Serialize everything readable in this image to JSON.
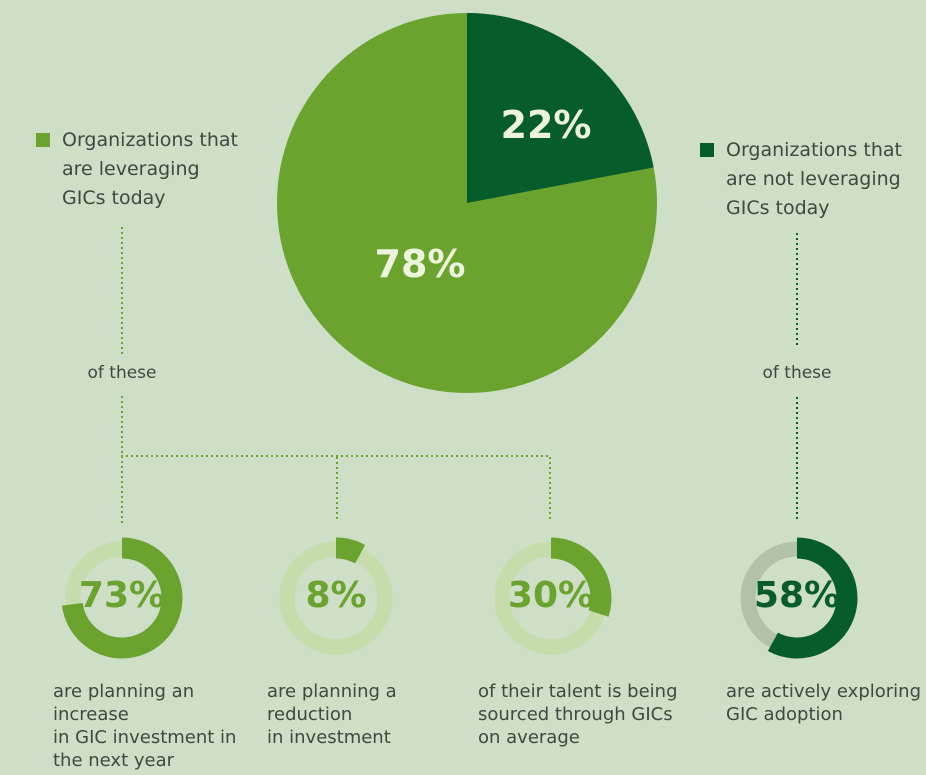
{
  "palette": {
    "background": "#cfdec6",
    "green_medium": "#6ba32f",
    "green_dark": "#075c2c",
    "donut_track_pale": "#c6dcaa",
    "donut_track_gray": "#b3c1ab",
    "pie_label_text": "#edf3dd",
    "body_text": "#3f4841"
  },
  "legend_left": {
    "lines": [
      "Organizations that",
      "are leveraging",
      "GICs today"
    ]
  },
  "legend_right": {
    "lines": [
      "Organizations that",
      "are not leveraging",
      "GICs today"
    ]
  },
  "connector_left_label": "of these",
  "connector_right_label": "of these",
  "chart_data": [
    {
      "type": "pie",
      "values": [
        78,
        22
      ],
      "labels": [
        "Organizations that are leveraging GICs today",
        "Organizations that are not leveraging GICs today"
      ],
      "data_labels": [
        "78%",
        "22%"
      ],
      "colors": [
        "#6ba32f",
        "#075c2c"
      ]
    },
    {
      "type": "donut",
      "value": 73,
      "label": "73%",
      "color": "#6ba32f",
      "track_color": "#c6dcaa",
      "caption_lines": [
        "are planning an increase",
        "in GIC investment in",
        "the next year"
      ]
    },
    {
      "type": "donut",
      "value": 8,
      "label": "8%",
      "color": "#6ba32f",
      "track_color": "#c6dcaa",
      "caption_lines": [
        "are planning a reduction",
        "in investment"
      ]
    },
    {
      "type": "donut",
      "value": 30,
      "label": "30%",
      "color": "#6ba32f",
      "track_color": "#c6dcaa",
      "caption_lines": [
        "of their talent is being",
        "sourced through GICs",
        "on average"
      ]
    },
    {
      "type": "donut",
      "value": 58,
      "label": "58%",
      "color": "#075c2c",
      "track_color": "#b3c1ab",
      "caption_lines": [
        "are actively exploring",
        "GIC adoption"
      ]
    }
  ]
}
